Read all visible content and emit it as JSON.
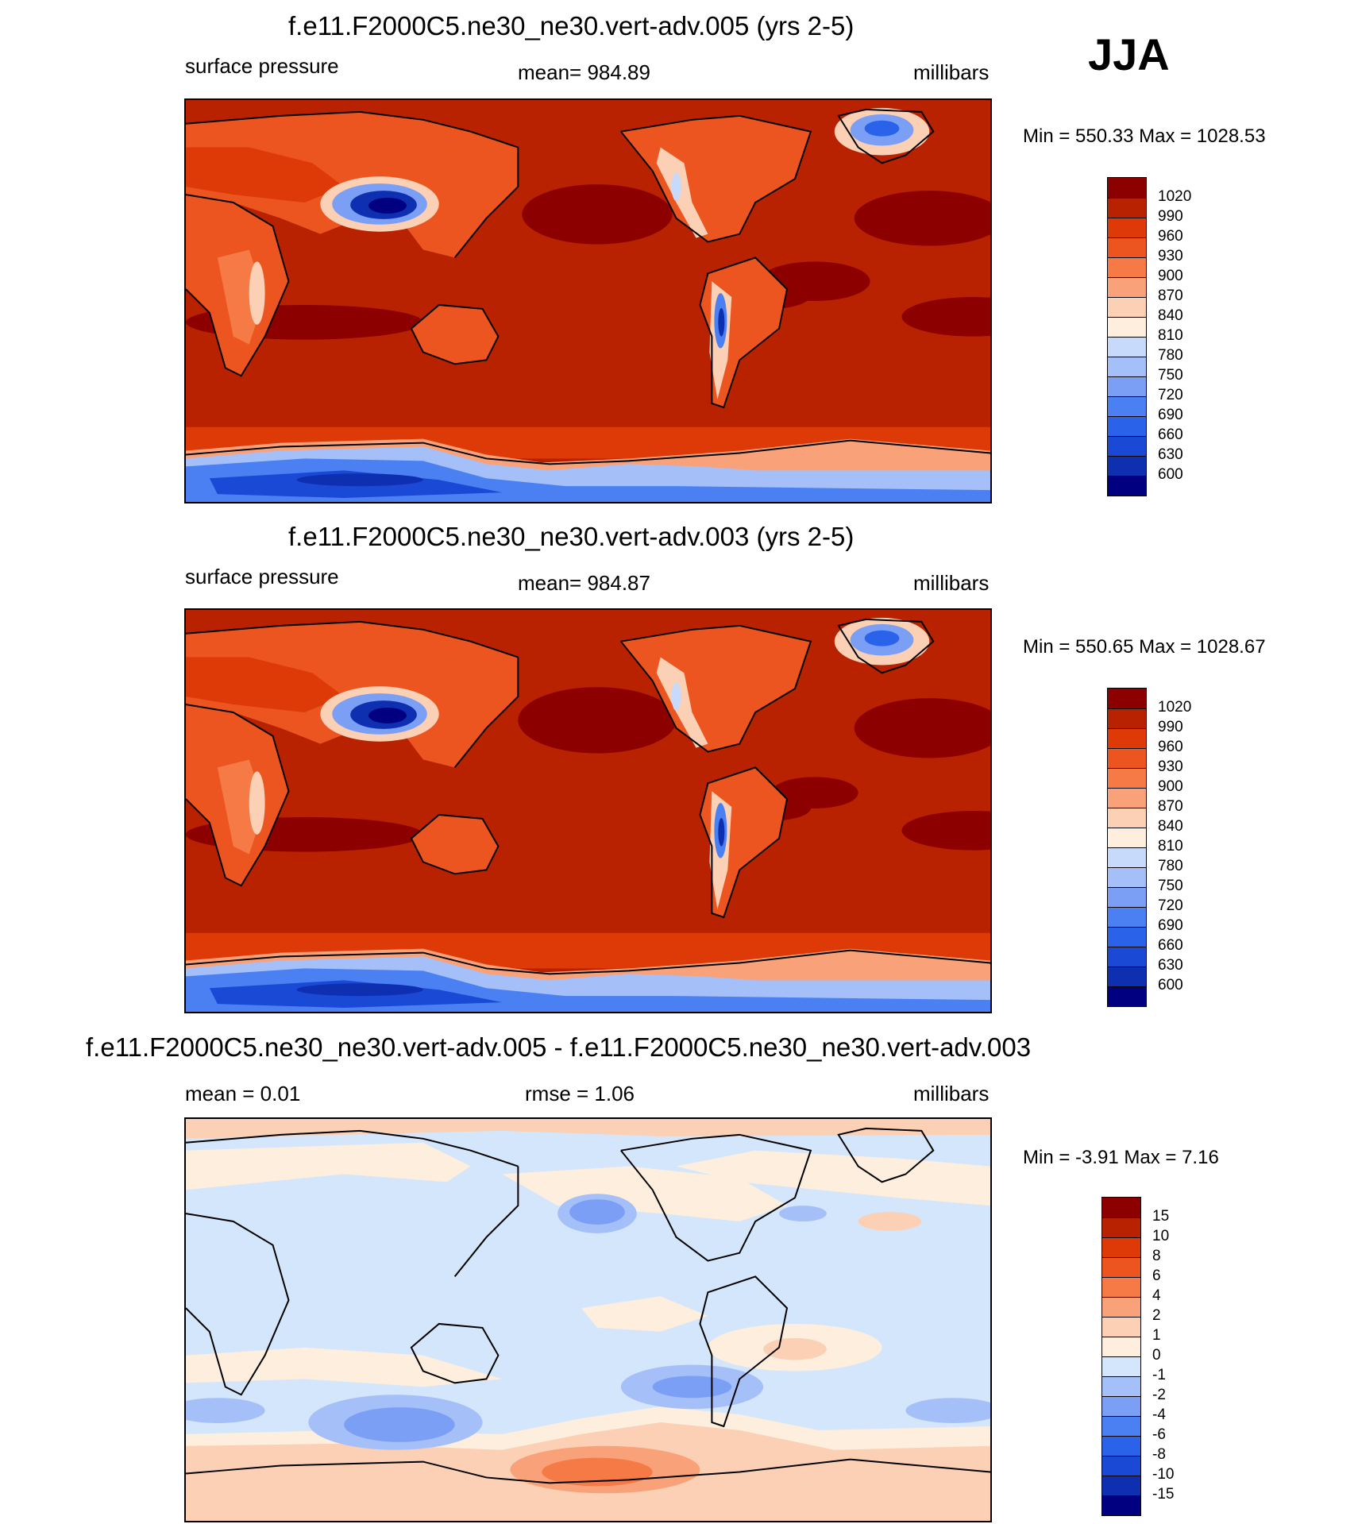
{
  "season": "JJA",
  "colors": {
    "pressure_scale": [
      "#000080",
      "#0d2fb0",
      "#1a49d5",
      "#2a62ea",
      "#4a80f2",
      "#7a9ff5",
      "#a5bff8",
      "#c8dafc",
      "#fdeedd",
      "#fcd0b4",
      "#f9a27a",
      "#f57a45",
      "#ec5420",
      "#dd3a08",
      "#b82200",
      "#8d0000"
    ],
    "diff_scale": [
      "#000080",
      "#0d2fb0",
      "#1a49d5",
      "#2a62ea",
      "#4a80f2",
      "#7a9ff5",
      "#a5bff8",
      "#d4e6fb",
      "#fdeedd",
      "#fcd0b4",
      "#f9a27a",
      "#f57a45",
      "#ec5420",
      "#dd3a08",
      "#b82200",
      "#8d0000"
    ],
    "coastline": "#000000"
  },
  "panels": [
    {
      "title": "f.e11.F2000C5.ne30_ne30.vert-adv.005 (yrs 2-5)",
      "left_label": "surface pressure",
      "center_label": "mean= 984.89",
      "right_label": "millibars",
      "minmax": "Min = 550.33 Max = 1028.53",
      "colorbar_labels": [
        "1020",
        "990",
        "960",
        "930",
        "900",
        "870",
        "840",
        "810",
        "780",
        "750",
        "720",
        "690",
        "660",
        "630",
        "600"
      ]
    },
    {
      "title": "f.e11.F2000C5.ne30_ne30.vert-adv.003 (yrs 2-5)",
      "left_label": "surface pressure",
      "center_label": "mean= 984.87",
      "right_label": "millibars",
      "minmax": "Min = 550.65 Max = 1028.67",
      "colorbar_labels": [
        "1020",
        "990",
        "960",
        "930",
        "900",
        "870",
        "840",
        "810",
        "780",
        "750",
        "720",
        "690",
        "660",
        "630",
        "600"
      ]
    },
    {
      "title": "f.e11.F2000C5.ne30_ne30.vert-adv.005 - f.e11.F2000C5.ne30_ne30.vert-adv.003",
      "left_label": "mean =   0.01",
      "center_label": "rmse =   1.06",
      "right_label": "millibars",
      "minmax": "Min =  -3.91 Max =   7.16",
      "colorbar_labels": [
        "15",
        "10",
        "8",
        "6",
        "4",
        "2",
        "1",
        "0",
        "-1",
        "-2",
        "-4",
        "-6",
        "-8",
        "-10",
        "-15"
      ]
    }
  ]
}
